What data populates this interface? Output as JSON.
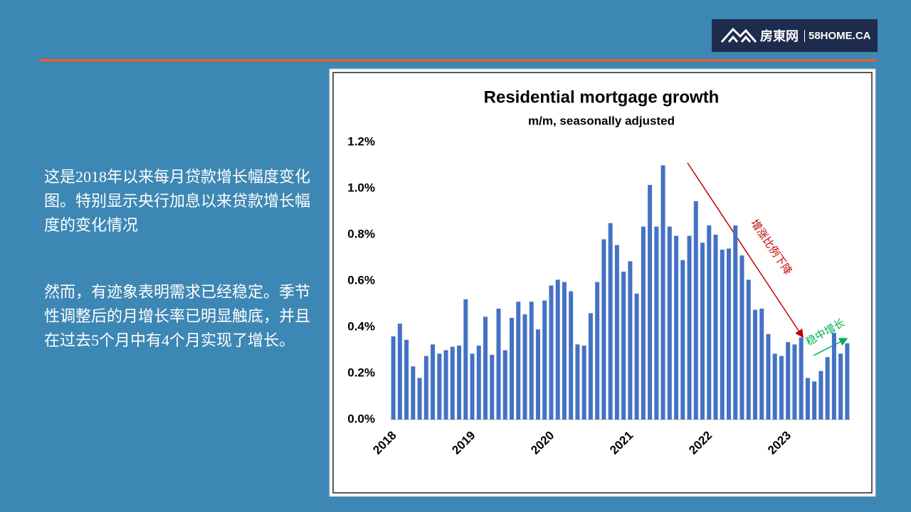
{
  "logo": {
    "brand": "房東网",
    "site": "58HOME.CA"
  },
  "notes": [
    "这是2018年以来每月贷款增长幅度变化图。特别显示央行加息以来贷款增长幅度的变化情况",
    "然而，有迹象表明需求已经稳定。季节性调整后的月增长率已明显触底，并且在过去5个月中有4个月实现了增长。"
  ],
  "chart_data": {
    "type": "bar",
    "title": "Residential mortgage growth",
    "subtitle": "m/m, seasonally adjusted",
    "color": "#4472c4",
    "categories": [
      "2018",
      null,
      null,
      null,
      null,
      null,
      null,
      null,
      null,
      null,
      null,
      null,
      "2019",
      null,
      null,
      null,
      null,
      null,
      null,
      null,
      null,
      null,
      null,
      null,
      "2020",
      null,
      null,
      null,
      null,
      null,
      null,
      null,
      null,
      null,
      null,
      null,
      "2021",
      null,
      null,
      null,
      null,
      null,
      null,
      null,
      null,
      null,
      null,
      null,
      "2022",
      null,
      null,
      null,
      null,
      null,
      null,
      null,
      null,
      null,
      null,
      null,
      "2023",
      null,
      null,
      null,
      null,
      null,
      null,
      null,
      null,
      null
    ],
    "values": [
      0.36,
      0.415,
      0.345,
      0.23,
      0.18,
      0.275,
      0.325,
      0.285,
      0.3,
      0.315,
      0.32,
      0.52,
      0.285,
      0.32,
      0.445,
      0.28,
      0.48,
      0.3,
      0.44,
      0.51,
      0.455,
      0.51,
      0.39,
      0.515,
      0.58,
      0.605,
      0.595,
      0.555,
      0.325,
      0.32,
      0.46,
      0.595,
      0.78,
      0.85,
      0.755,
      0.64,
      0.685,
      0.545,
      0.835,
      1.015,
      0.835,
      1.1,
      0.835,
      0.795,
      0.69,
      0.795,
      0.945,
      0.765,
      0.84,
      0.8,
      0.735,
      0.74,
      0.84,
      0.71,
      0.605,
      0.475,
      0.48,
      0.37,
      0.285,
      0.275,
      0.335,
      0.325,
      0.355,
      0.18,
      0.165,
      0.21,
      0.27,
      0.375,
      0.285,
      0.33
    ],
    "ylim": [
      0,
      1.2
    ],
    "yticks": [
      {
        "value": 0,
        "label": "0.0%"
      },
      {
        "value": 0.2,
        "label": "0.2%"
      },
      {
        "value": 0.4,
        "label": "0.4%"
      },
      {
        "value": 0.6,
        "label": "0.6%"
      },
      {
        "value": 0.8,
        "label": "0.8%"
      },
      {
        "value": 1.0,
        "label": "1.0%"
      },
      {
        "value": 1.2,
        "label": "1.2%"
      }
    ],
    "annotations": [
      {
        "text": "增涨比例下降",
        "color": "#c00000"
      },
      {
        "text": "稳中增长",
        "color": "#00b050"
      }
    ]
  }
}
